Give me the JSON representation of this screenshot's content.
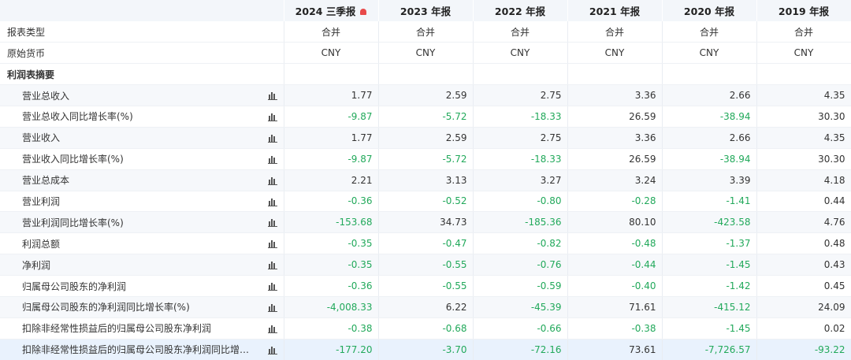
{
  "header": {
    "columns": [
      "2024 三季报",
      "2023 年报",
      "2022 年报",
      "2021 年报",
      "2020 年报",
      "2019 年报"
    ],
    "bell_color": "#e84a4a"
  },
  "meta_rows": [
    {
      "label": "报表类型",
      "values": [
        "合并",
        "合并",
        "合并",
        "合并",
        "合并",
        "合并"
      ]
    },
    {
      "label": "原始货币",
      "values": [
        "CNY",
        "CNY",
        "CNY",
        "CNY",
        "CNY",
        "CNY"
      ]
    }
  ],
  "section": {
    "label": "利润表摘要"
  },
  "rows": [
    {
      "label": "营业总收入",
      "values": [
        "1.77",
        "2.59",
        "2.75",
        "3.36",
        "2.66",
        "4.35"
      ]
    },
    {
      "label": "营业总收入同比增长率(%)",
      "values": [
        "-9.87",
        "-5.72",
        "-18.33",
        "26.59",
        "-38.94",
        "30.30"
      ]
    },
    {
      "label": "营业收入",
      "values": [
        "1.77",
        "2.59",
        "2.75",
        "3.36",
        "2.66",
        "4.35"
      ]
    },
    {
      "label": "营业收入同比增长率(%)",
      "values": [
        "-9.87",
        "-5.72",
        "-18.33",
        "26.59",
        "-38.94",
        "30.30"
      ]
    },
    {
      "label": "营业总成本",
      "values": [
        "2.21",
        "3.13",
        "3.27",
        "3.24",
        "3.39",
        "4.18"
      ]
    },
    {
      "label": "营业利润",
      "values": [
        "-0.36",
        "-0.52",
        "-0.80",
        "-0.28",
        "-1.41",
        "0.44"
      ]
    },
    {
      "label": "营业利润同比增长率(%)",
      "values": [
        "-153.68",
        "34.73",
        "-185.36",
        "80.10",
        "-423.58",
        "4.76"
      ]
    },
    {
      "label": "利润总额",
      "values": [
        "-0.35",
        "-0.47",
        "-0.82",
        "-0.48",
        "-1.37",
        "0.48"
      ]
    },
    {
      "label": "净利润",
      "values": [
        "-0.35",
        "-0.55",
        "-0.76",
        "-0.44",
        "-1.45",
        "0.43"
      ]
    },
    {
      "label": "归属母公司股东的净利润",
      "values": [
        "-0.36",
        "-0.55",
        "-0.59",
        "-0.40",
        "-1.42",
        "0.45"
      ]
    },
    {
      "label": "归属母公司股东的净利润同比增长率(%)",
      "values": [
        "-4,008.33",
        "6.22",
        "-45.39",
        "71.61",
        "-415.12",
        "24.09"
      ]
    },
    {
      "label": "扣除非经常性损益后的归属母公司股东净利润",
      "values": [
        "-0.38",
        "-0.68",
        "-0.66",
        "-0.38",
        "-1.45",
        "0.02"
      ]
    },
    {
      "label": "扣除非经常性损益后的归属母公司股东净利润同比增…",
      "values": [
        "-177.20",
        "-3.70",
        "-72.16",
        "73.61",
        "-7,726.57",
        "-93.22"
      ]
    }
  ],
  "icons": {
    "row_chart": "bar-chart-icon",
    "report_alert": "bell-icon"
  },
  "colors": {
    "negative": "#22a95b",
    "positive": "#333333",
    "header_bg": "#f3f6fa",
    "highlight_row": "#e9f2fd"
  }
}
